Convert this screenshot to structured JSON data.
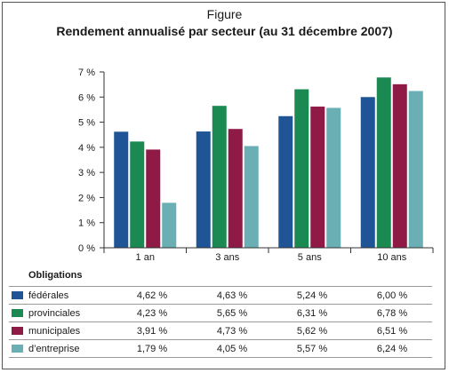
{
  "figure_label": "Figure",
  "chart_data": {
    "type": "bar",
    "title": "Rendement annualisé par secteur (au 31 décembre 2007)",
    "categories": [
      "1 an",
      "3 ans",
      "5 ans",
      "10 ans"
    ],
    "ylim": [
      0,
      7
    ],
    "y_ticks": [
      "0 %",
      "1 %",
      "2 %",
      "3 %",
      "4 %",
      "5 %",
      "6 %",
      "7 %"
    ],
    "grid": false,
    "legend": "table below chart",
    "series": [
      {
        "name": "fédérales",
        "color": "#1f5597",
        "values": [
          4.62,
          4.63,
          5.24,
          6.0
        ],
        "labels": [
          "4,62 %",
          "4,63 %",
          "5,24 %",
          "6,00 %"
        ]
      },
      {
        "name": "provinciales",
        "color": "#1a8a52",
        "values": [
          4.23,
          5.65,
          6.31,
          6.78
        ],
        "labels": [
          "4,23 %",
          "5,65 %",
          "6,31 %",
          "6,78 %"
        ]
      },
      {
        "name": "municipales",
        "color": "#8f1a45",
        "values": [
          3.91,
          4.73,
          5.62,
          6.51
        ],
        "labels": [
          "3,91 %",
          "4,73 %",
          "5,62 %",
          "6,51 %"
        ]
      },
      {
        "name": "d’entreprise",
        "color": "#69afb4",
        "values": [
          1.79,
          4.05,
          5.57,
          6.24
        ],
        "labels": [
          "1,79 %",
          "4,05 %",
          "5,57 %",
          "6,24 %"
        ]
      }
    ]
  },
  "table": {
    "header": "Obligations"
  }
}
